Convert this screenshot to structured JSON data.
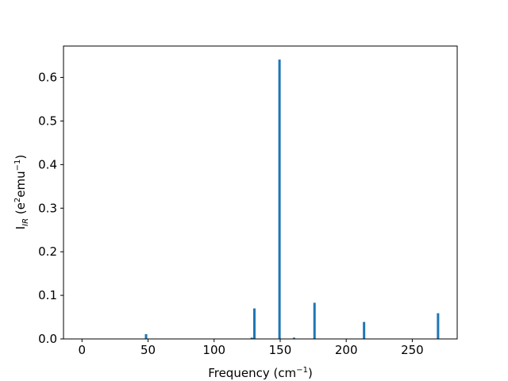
{
  "chart_data": {
    "type": "bar",
    "xlabel": "Frequency (cm⁻¹)",
    "xlabel_parts": {
      "main": "Frequency (cm",
      "sup": "−1",
      "close": ")"
    },
    "ylabel": "I_IR (e²emu⁻¹)",
    "ylabel_parts": {
      "main": "I",
      "sub": "IR",
      "mid": " (e",
      "sup1": "2",
      "mid2": "emu",
      "sup2": "−1",
      "close": ")"
    },
    "xlim": [
      -14,
      284
    ],
    "ylim": [
      0,
      0.672
    ],
    "x_ticks": [
      0,
      50,
      100,
      150,
      200,
      250
    ],
    "y_ticks": [
      0.0,
      0.1,
      0.2,
      0.3,
      0.4,
      0.5,
      0.6
    ],
    "y_tick_labels": [
      "0.0",
      "0.1",
      "0.2",
      "0.3",
      "0.4",
      "0.5",
      "0.6"
    ],
    "bar_color": "#1f77b4",
    "x": [
      48.5,
      128.5,
      130.5,
      149.5,
      160.5,
      176.0,
      213.5,
      269.5
    ],
    "values": [
      0.011,
      0.003,
      0.07,
      0.641,
      0.003,
      0.083,
      0.039,
      0.059
    ]
  }
}
